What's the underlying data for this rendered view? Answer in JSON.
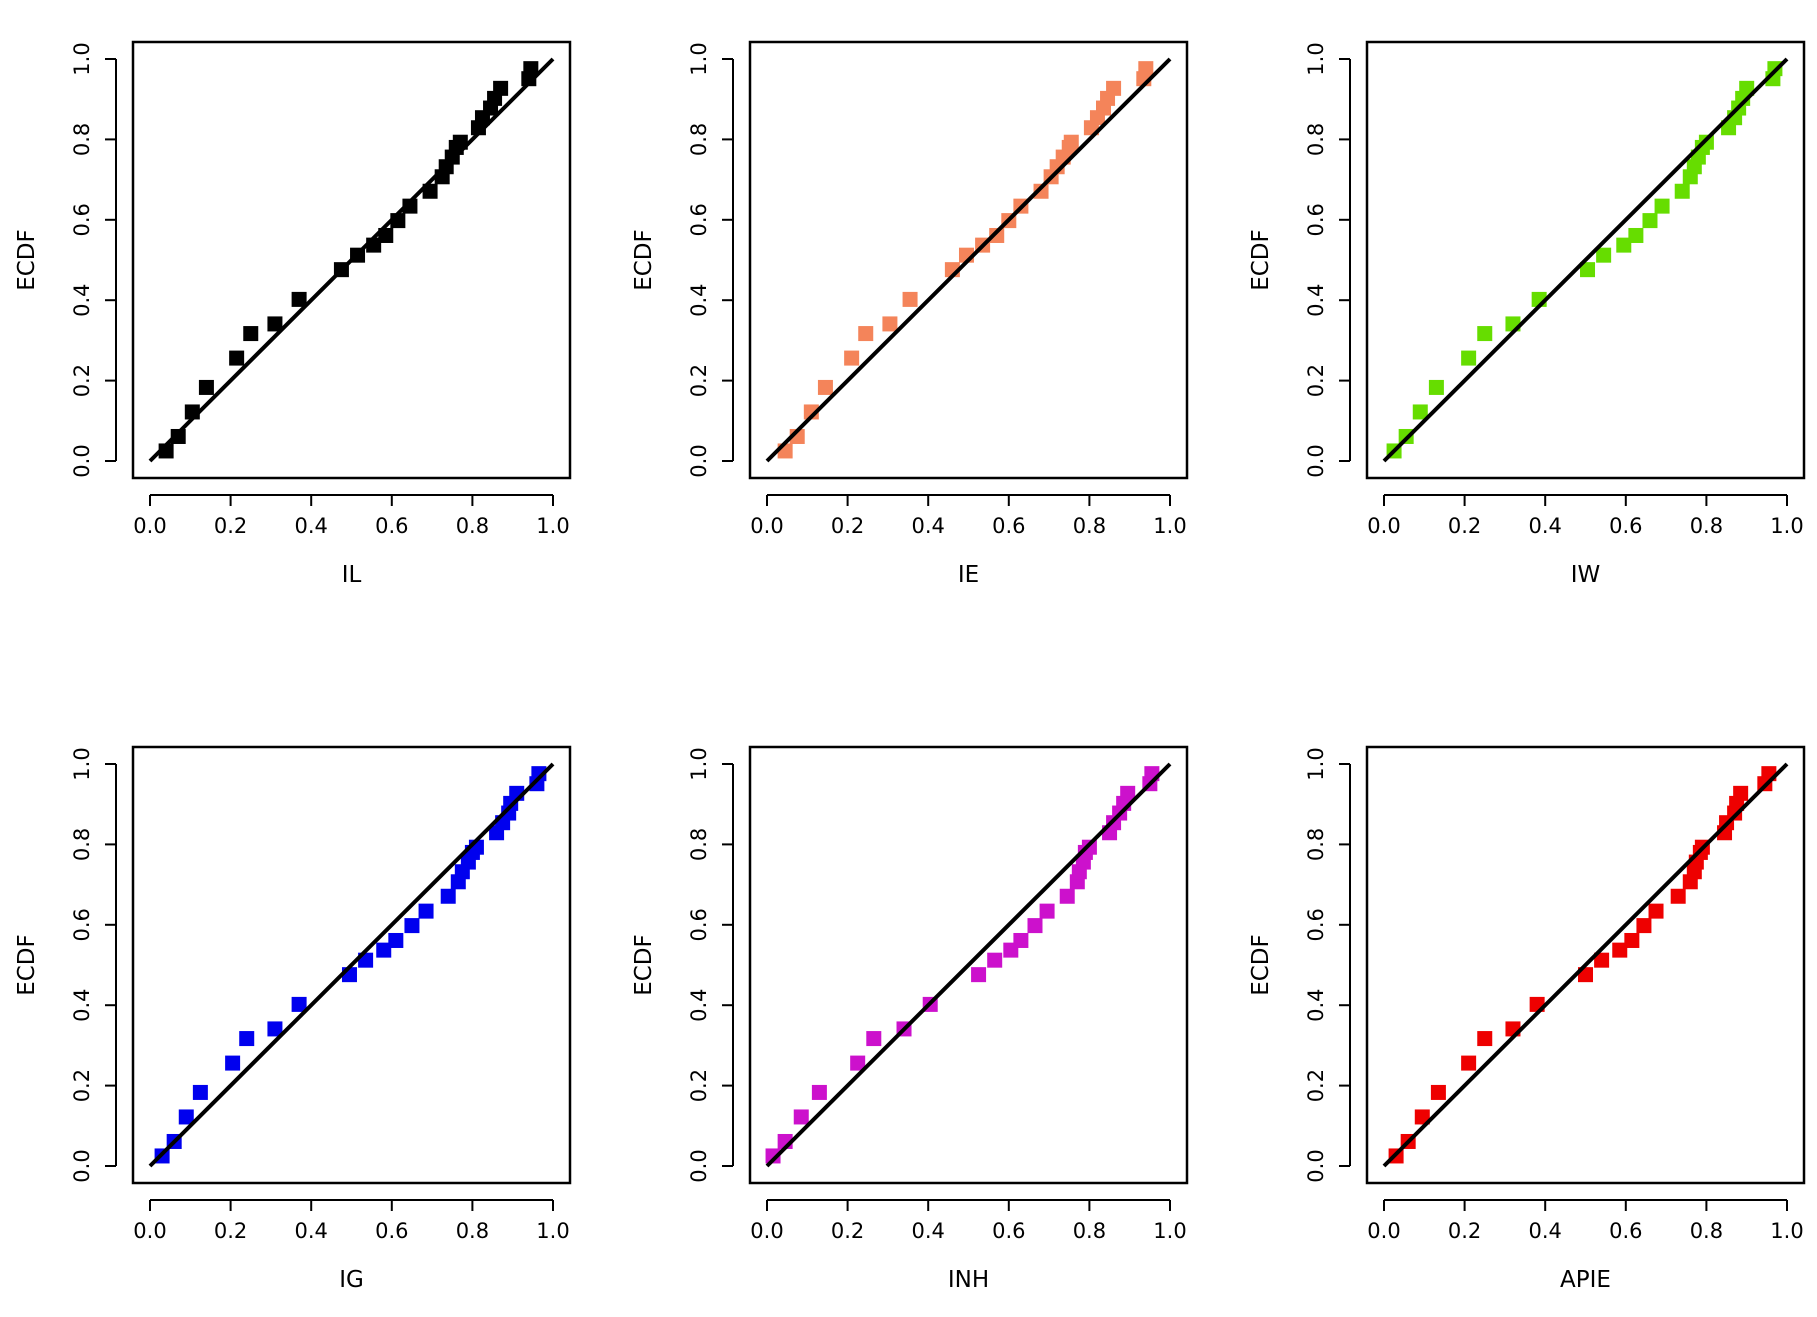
{
  "chart_data": [
    {
      "type": "scatter",
      "xlabel": "IL",
      "ylabel": "ECDF",
      "color": "#000000",
      "xlim": [
        0,
        1
      ],
      "ylim": [
        0,
        1
      ],
      "xticks": [
        "0.0",
        "0.2",
        "0.4",
        "0.6",
        "0.8",
        "1.0"
      ],
      "yticks": [
        "0.0",
        "0.2",
        "0.4",
        "0.6",
        "0.8",
        "1.0"
      ],
      "reference_line": [
        [
          0,
          0
        ],
        [
          1,
          1
        ]
      ],
      "x": [
        0.04,
        0.07,
        0.105,
        0.14,
        0.215,
        0.25,
        0.31,
        0.37,
        0.475,
        0.515,
        0.555,
        0.585,
        0.615,
        0.645,
        0.695,
        0.725,
        0.735,
        0.75,
        0.76,
        0.77,
        0.815,
        0.825,
        0.845,
        0.855,
        0.87,
        0.94,
        0.945
      ],
      "y": [
        0.025,
        0.061,
        0.122,
        0.183,
        0.256,
        0.317,
        0.341,
        0.402,
        0.476,
        0.512,
        0.537,
        0.561,
        0.598,
        0.634,
        0.671,
        0.707,
        0.732,
        0.756,
        0.78,
        0.793,
        0.829,
        0.854,
        0.878,
        0.902,
        0.927,
        0.951,
        0.976
      ]
    },
    {
      "type": "scatter",
      "xlabel": "IE",
      "ylabel": "ECDF",
      "color": "#f4845a",
      "xlim": [
        0,
        1
      ],
      "ylim": [
        0,
        1
      ],
      "xticks": [
        "0.0",
        "0.2",
        "0.4",
        "0.6",
        "0.8",
        "1.0"
      ],
      "yticks": [
        "0.0",
        "0.2",
        "0.4",
        "0.6",
        "0.8",
        "1.0"
      ],
      "reference_line": [
        [
          0,
          0
        ],
        [
          1,
          1
        ]
      ],
      "x": [
        0.045,
        0.075,
        0.11,
        0.145,
        0.21,
        0.245,
        0.305,
        0.355,
        0.46,
        0.495,
        0.535,
        0.57,
        0.6,
        0.63,
        0.68,
        0.705,
        0.72,
        0.735,
        0.75,
        0.755,
        0.805,
        0.82,
        0.835,
        0.845,
        0.86,
        0.935,
        0.94
      ],
      "y": [
        0.025,
        0.061,
        0.122,
        0.183,
        0.256,
        0.317,
        0.341,
        0.402,
        0.476,
        0.512,
        0.537,
        0.561,
        0.598,
        0.634,
        0.671,
        0.707,
        0.732,
        0.756,
        0.78,
        0.793,
        0.829,
        0.854,
        0.878,
        0.902,
        0.927,
        0.951,
        0.976
      ]
    },
    {
      "type": "scatter",
      "xlabel": "IW",
      "ylabel": "ECDF",
      "color": "#66dd00",
      "xlim": [
        0,
        1
      ],
      "ylim": [
        0,
        1
      ],
      "xticks": [
        "0.0",
        "0.2",
        "0.4",
        "0.6",
        "0.8",
        "1.0"
      ],
      "yticks": [
        "0.0",
        "0.2",
        "0.4",
        "0.6",
        "0.8",
        "1.0"
      ],
      "reference_line": [
        [
          0,
          0
        ],
        [
          1,
          1
        ]
      ],
      "x": [
        0.025,
        0.055,
        0.09,
        0.13,
        0.21,
        0.25,
        0.32,
        0.385,
        0.505,
        0.545,
        0.595,
        0.625,
        0.66,
        0.69,
        0.74,
        0.76,
        0.77,
        0.78,
        0.79,
        0.8,
        0.855,
        0.87,
        0.88,
        0.89,
        0.9,
        0.965,
        0.97
      ],
      "y": [
        0.025,
        0.061,
        0.122,
        0.183,
        0.256,
        0.317,
        0.341,
        0.402,
        0.476,
        0.512,
        0.537,
        0.561,
        0.598,
        0.634,
        0.671,
        0.707,
        0.732,
        0.756,
        0.78,
        0.793,
        0.829,
        0.854,
        0.878,
        0.902,
        0.927,
        0.951,
        0.976
      ]
    },
    {
      "type": "scatter",
      "xlabel": "IG",
      "ylabel": "ECDF",
      "color": "#0000ee",
      "xlim": [
        0,
        1
      ],
      "ylim": [
        0,
        1
      ],
      "xticks": [
        "0.0",
        "0.2",
        "0.4",
        "0.6",
        "0.8",
        "1.0"
      ],
      "yticks": [
        "0.0",
        "0.2",
        "0.4",
        "0.6",
        "0.8",
        "1.0"
      ],
      "reference_line": [
        [
          0,
          0
        ],
        [
          1,
          1
        ]
      ],
      "x": [
        0.03,
        0.06,
        0.09,
        0.125,
        0.205,
        0.24,
        0.31,
        0.37,
        0.495,
        0.535,
        0.58,
        0.61,
        0.65,
        0.685,
        0.74,
        0.765,
        0.775,
        0.79,
        0.8,
        0.81,
        0.86,
        0.875,
        0.89,
        0.895,
        0.91,
        0.96,
        0.965
      ],
      "y": [
        0.025,
        0.061,
        0.122,
        0.183,
        0.256,
        0.317,
        0.341,
        0.402,
        0.476,
        0.512,
        0.537,
        0.561,
        0.598,
        0.634,
        0.671,
        0.707,
        0.732,
        0.756,
        0.78,
        0.793,
        0.829,
        0.854,
        0.878,
        0.902,
        0.927,
        0.951,
        0.976
      ]
    },
    {
      "type": "scatter",
      "xlabel": "INH",
      "ylabel": "ECDF",
      "color": "#cc11cc",
      "xlim": [
        0,
        1
      ],
      "ylim": [
        0,
        1
      ],
      "xticks": [
        "0.0",
        "0.2",
        "0.4",
        "0.6",
        "0.8",
        "1.0"
      ],
      "yticks": [
        "0.0",
        "0.2",
        "0.4",
        "0.6",
        "0.8",
        "1.0"
      ],
      "reference_line": [
        [
          0,
          0
        ],
        [
          1,
          1
        ]
      ],
      "x": [
        0.015,
        0.045,
        0.085,
        0.13,
        0.225,
        0.265,
        0.34,
        0.405,
        0.525,
        0.565,
        0.605,
        0.63,
        0.665,
        0.695,
        0.745,
        0.77,
        0.775,
        0.785,
        0.79,
        0.8,
        0.85,
        0.86,
        0.875,
        0.885,
        0.895,
        0.95,
        0.955
      ],
      "y": [
        0.025,
        0.061,
        0.122,
        0.183,
        0.256,
        0.317,
        0.341,
        0.402,
        0.476,
        0.512,
        0.537,
        0.561,
        0.598,
        0.634,
        0.671,
        0.707,
        0.732,
        0.756,
        0.78,
        0.793,
        0.829,
        0.854,
        0.878,
        0.902,
        0.927,
        0.951,
        0.976
      ]
    },
    {
      "type": "scatter",
      "xlabel": "APIE",
      "ylabel": "ECDF",
      "color": "#ee0000",
      "xlim": [
        0,
        1
      ],
      "ylim": [
        0,
        1
      ],
      "xticks": [
        "0.0",
        "0.2",
        "0.4",
        "0.6",
        "0.8",
        "1.0"
      ],
      "yticks": [
        "0.0",
        "0.2",
        "0.4",
        "0.6",
        "0.8",
        "1.0"
      ],
      "reference_line": [
        [
          0,
          0
        ],
        [
          1,
          1
        ]
      ],
      "x": [
        0.03,
        0.06,
        0.095,
        0.135,
        0.21,
        0.25,
        0.32,
        0.38,
        0.5,
        0.54,
        0.585,
        0.615,
        0.645,
        0.675,
        0.73,
        0.76,
        0.77,
        0.775,
        0.785,
        0.79,
        0.845,
        0.85,
        0.87,
        0.875,
        0.885,
        0.945,
        0.955
      ],
      "y": [
        0.025,
        0.061,
        0.122,
        0.183,
        0.256,
        0.317,
        0.341,
        0.402,
        0.476,
        0.512,
        0.537,
        0.561,
        0.598,
        0.634,
        0.671,
        0.707,
        0.732,
        0.756,
        0.78,
        0.793,
        0.829,
        0.854,
        0.878,
        0.902,
        0.927,
        0.951,
        0.976
      ]
    }
  ]
}
